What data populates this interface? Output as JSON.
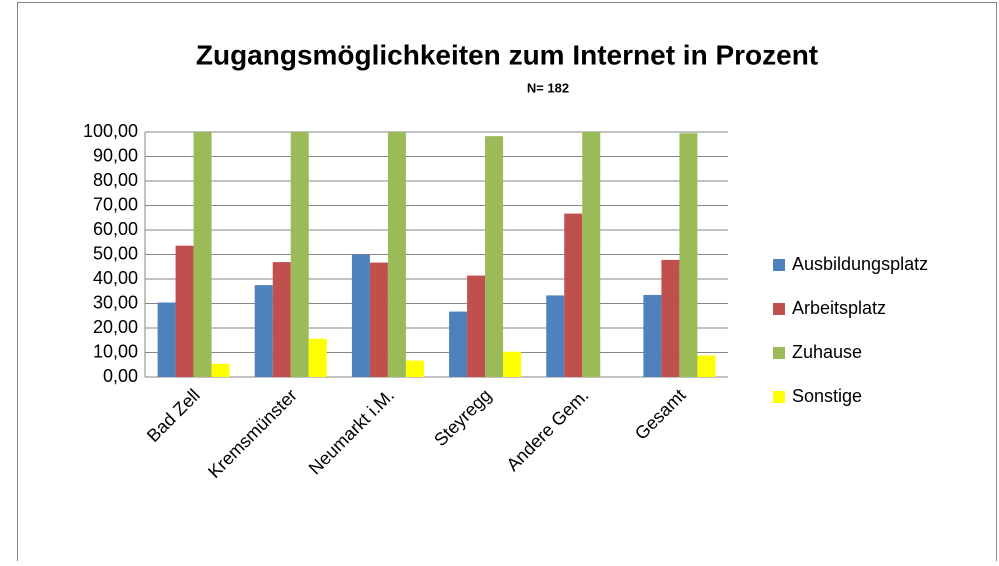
{
  "chart_data": {
    "type": "bar",
    "title": "Zugangsmöglichkeiten zum Internet in Prozent",
    "subtitle": "N= 182",
    "categories": [
      "Bad Zell",
      "Kremsmünster",
      "Neumarkt i.M.",
      "Steyregg",
      "Andere Gem.",
      "Gesamt"
    ],
    "series": [
      {
        "name": "Ausbildungsplatz",
        "color": "#4f81bd",
        "values": [
          30.4,
          37.5,
          50.0,
          26.7,
          33.3,
          33.5
        ]
      },
      {
        "name": "Arbeitsplatz",
        "color": "#c0504d",
        "values": [
          53.6,
          46.9,
          46.7,
          41.4,
          66.7,
          47.8
        ]
      },
      {
        "name": "Zuhause",
        "color": "#9bbb59",
        "values": [
          100.0,
          100.0,
          100.0,
          98.3,
          100.0,
          99.5
        ]
      },
      {
        "name": "Sonstige",
        "color": "#ffff00",
        "values": [
          5.4,
          15.6,
          6.7,
          10.3,
          0,
          8.8
        ]
      }
    ],
    "ylim": [
      0,
      100
    ],
    "yticks": [
      {
        "value": 0,
        "label": "0,00"
      },
      {
        "value": 10,
        "label": "10,00"
      },
      {
        "value": 20,
        "label": "20,00"
      },
      {
        "value": 30,
        "label": "30,00"
      },
      {
        "value": 40,
        "label": "40,00"
      },
      {
        "value": 50,
        "label": "50,00"
      },
      {
        "value": 60,
        "label": "60,00"
      },
      {
        "value": 70,
        "label": "70,00"
      },
      {
        "value": 80,
        "label": "80,00"
      },
      {
        "value": 90,
        "label": "90,00"
      },
      {
        "value": 100,
        "label": "100,00"
      }
    ],
    "grid": true,
    "legend": "right"
  }
}
